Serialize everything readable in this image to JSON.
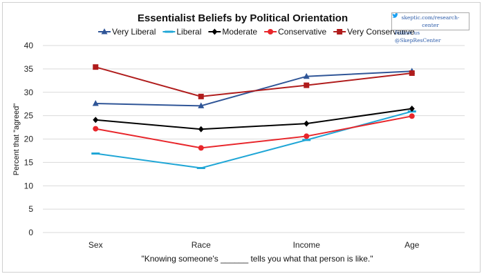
{
  "credit": {
    "url": "skeptic.com/research-center",
    "follow": "Follow us @SkepResCenter",
    "icon": "twitter-bird-icon"
  },
  "chart_data": {
    "type": "line",
    "title": "Essentialist Beliefs by Political Orientation",
    "ylabel": "Percent that \"agreed\"",
    "xlabel": "\"Knowing someone's ______ tells you what that person is like.\"",
    "categories": [
      "Sex",
      "Race",
      "Income",
      "Age"
    ],
    "ylim": [
      0,
      40
    ],
    "yticks": [
      0,
      5,
      10,
      15,
      20,
      25,
      30,
      35,
      40
    ],
    "grid": true,
    "legend_position": "top",
    "series": [
      {
        "name": "Very Liberal",
        "color": "#2f5597",
        "marker": "triangle",
        "values": [
          27.6,
          27.1,
          33.4,
          34.5
        ]
      },
      {
        "name": "Liberal",
        "color": "#1fa6d6",
        "marker": "dash",
        "values": [
          16.9,
          13.8,
          19.8,
          25.9
        ]
      },
      {
        "name": "Moderate",
        "color": "#000000",
        "marker": "diamond",
        "values": [
          24.1,
          22.1,
          23.3,
          26.5
        ]
      },
      {
        "name": "Conservative",
        "color": "#e8262b",
        "marker": "circle",
        "values": [
          22.2,
          18.1,
          20.6,
          24.9
        ]
      },
      {
        "name": "Very Conservative",
        "color": "#b01c1c",
        "marker": "square",
        "values": [
          35.4,
          29.1,
          31.5,
          34.1
        ]
      }
    ]
  }
}
